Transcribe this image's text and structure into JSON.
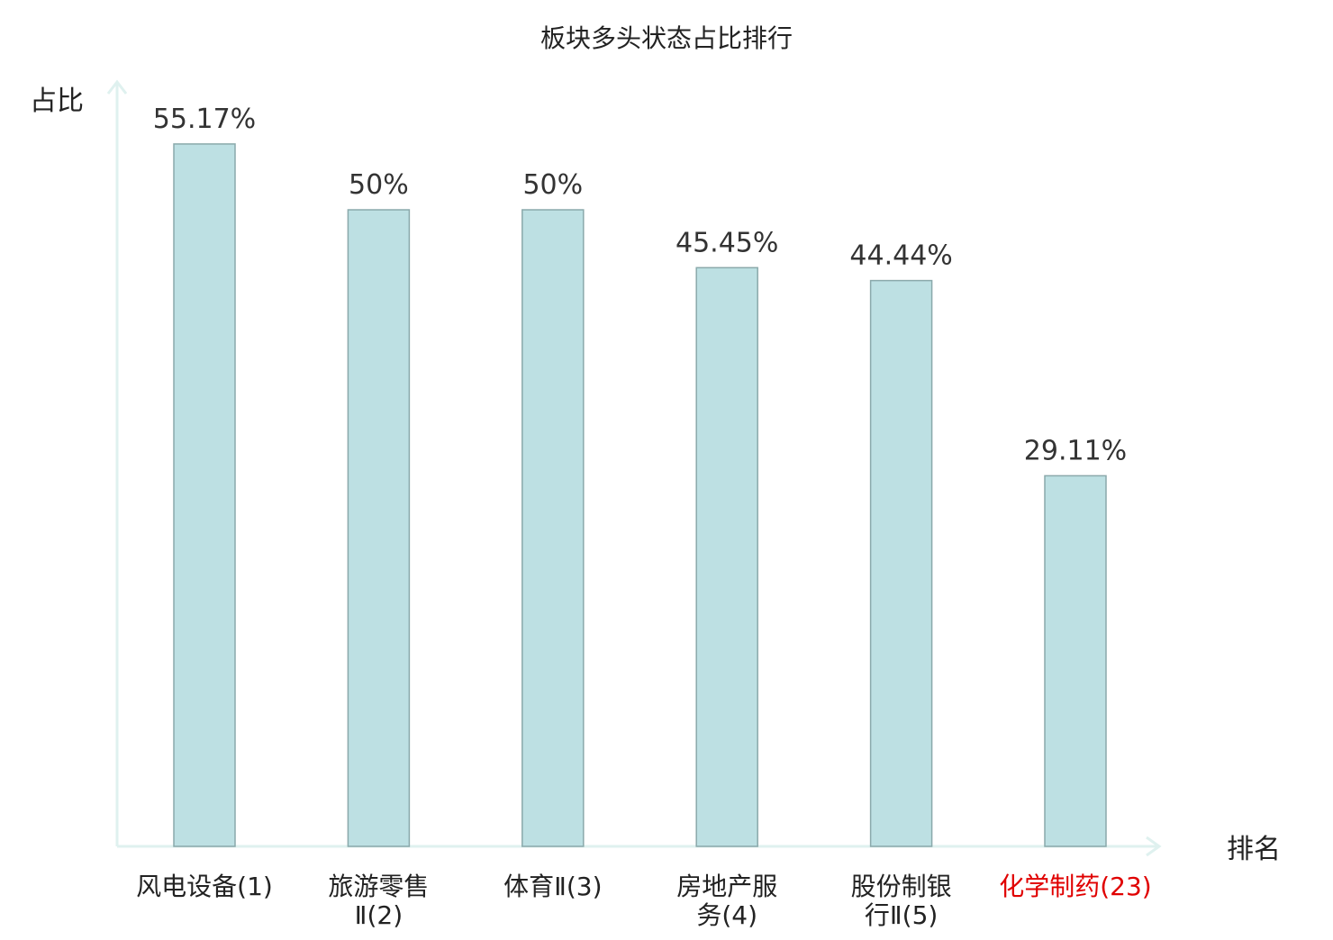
{
  "chart_data": {
    "type": "bar",
    "title": "板块多头状态占比排行",
    "ylabel": "占比",
    "xlabel": "排名",
    "ylim": [
      0,
      60
    ],
    "grid": false,
    "legend": "none",
    "categories": [
      {
        "lines": [
          "风电设备(1)"
        ],
        "highlight": false
      },
      {
        "lines": [
          "旅游零售",
          "Ⅱ(2)"
        ],
        "highlight": false
      },
      {
        "lines": [
          "体育Ⅱ(3)"
        ],
        "highlight": false
      },
      {
        "lines": [
          "房地产服",
          "务(4)"
        ],
        "highlight": false
      },
      {
        "lines": [
          "股份制银",
          "行Ⅱ(5)"
        ],
        "highlight": false
      },
      {
        "lines": [
          "化学制药(23)"
        ],
        "highlight": true
      }
    ],
    "values": [
      55.17,
      50,
      50,
      45.45,
      44.44,
      29.11
    ],
    "value_labels": [
      "55.17%",
      "50%",
      "50%",
      "45.45%",
      "44.44%",
      "29.11%"
    ]
  },
  "colors": {
    "bar_fill": "#bde0e3",
    "bar_stroke": "#8aa9ab",
    "axis": "#dff1ef",
    "text": "#333333",
    "highlight": "#e00000"
  }
}
